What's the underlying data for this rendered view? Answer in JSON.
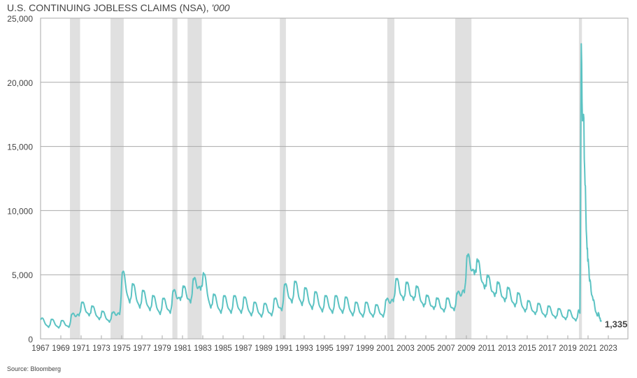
{
  "chart_data": {
    "type": "line",
    "title": "U.S. CONTINUING JOBLESS CLAIMS (NSA), ",
    "title_unit": "'000",
    "source": "Source: Bloomberg",
    "ylim": [
      0,
      25000
    ],
    "xlim": [
      1967,
      2025
    ],
    "yticks": [
      "0",
      "5,000",
      "10,000",
      "15,000",
      "20,000",
      "25,000"
    ],
    "ytick_values": [
      0,
      5000,
      10000,
      15000,
      20000,
      25000
    ],
    "xticks": [
      "1967",
      "1969",
      "1971",
      "1973",
      "1975",
      "1977",
      "1979",
      "1981",
      "1983",
      "1985",
      "1987",
      "1989",
      "1991",
      "1993",
      "1995",
      "1997",
      "1999",
      "2001",
      "2003",
      "2005",
      "2007",
      "2009",
      "2011",
      "2013",
      "2015",
      "2017",
      "2019",
      "2021",
      "2023"
    ],
    "grid": true,
    "line_color": "#5cc3c3",
    "recession_color": "#e0e0e0",
    "recessions": [
      [
        1969.9,
        1970.9
      ],
      [
        1973.9,
        1975.2
      ],
      [
        1980.0,
        1980.5
      ],
      [
        1981.5,
        1982.9
      ],
      [
        1990.6,
        1991.2
      ],
      [
        2001.2,
        2001.9
      ],
      [
        2007.9,
        2009.5
      ],
      [
        2020.1,
        2020.4
      ]
    ],
    "last_value_label": "1,335",
    "series": [
      {
        "name": "Continuing jobless claims (NSA)",
        "points": [
          [
            1967.0,
            1500
          ],
          [
            1967.1,
            1600
          ],
          [
            1967.8,
            900
          ],
          [
            1968.1,
            1500
          ],
          [
            1968.8,
            850
          ],
          [
            1969.1,
            1400
          ],
          [
            1969.8,
            900
          ],
          [
            1970.1,
            1900
          ],
          [
            1970.8,
            1800
          ],
          [
            1971.1,
            2800
          ],
          [
            1971.8,
            1800
          ],
          [
            1972.1,
            2500
          ],
          [
            1972.8,
            1500
          ],
          [
            1973.1,
            2100
          ],
          [
            1973.8,
            1300
          ],
          [
            1974.1,
            2000
          ],
          [
            1974.8,
            1900
          ],
          [
            1975.1,
            5200
          ],
          [
            1975.8,
            2800
          ],
          [
            1976.1,
            4200
          ],
          [
            1976.8,
            2400
          ],
          [
            1977.1,
            3700
          ],
          [
            1977.8,
            2200
          ],
          [
            1978.1,
            3300
          ],
          [
            1978.8,
            1900
          ],
          [
            1979.1,
            3100
          ],
          [
            1979.8,
            2000
          ],
          [
            1980.1,
            3700
          ],
          [
            1980.8,
            3000
          ],
          [
            1981.1,
            4000
          ],
          [
            1981.8,
            2800
          ],
          [
            1982.1,
            4600
          ],
          [
            1982.8,
            3800
          ],
          [
            1983.1,
            5000
          ],
          [
            1983.8,
            2400
          ],
          [
            1984.1,
            3400
          ],
          [
            1984.8,
            2000
          ],
          [
            1985.1,
            3300
          ],
          [
            1985.8,
            2000
          ],
          [
            1986.1,
            3300
          ],
          [
            1986.8,
            2000
          ],
          [
            1987.1,
            3200
          ],
          [
            1987.8,
            1800
          ],
          [
            1988.1,
            2800
          ],
          [
            1988.8,
            1700
          ],
          [
            1989.1,
            2700
          ],
          [
            1989.8,
            1800
          ],
          [
            1990.1,
            3100
          ],
          [
            1990.8,
            2200
          ],
          [
            1991.1,
            4200
          ],
          [
            1991.8,
            2800
          ],
          [
            1992.1,
            4400
          ],
          [
            1992.8,
            2600
          ],
          [
            1993.1,
            3900
          ],
          [
            1993.8,
            2300
          ],
          [
            1994.1,
            3600
          ],
          [
            1994.8,
            2100
          ],
          [
            1995.1,
            3300
          ],
          [
            1995.8,
            2000
          ],
          [
            1996.1,
            3300
          ],
          [
            1996.8,
            2000
          ],
          [
            1997.1,
            3200
          ],
          [
            1997.8,
            1800
          ],
          [
            1998.1,
            2800
          ],
          [
            1998.8,
            1700
          ],
          [
            1999.1,
            2800
          ],
          [
            1999.8,
            1700
          ],
          [
            2000.1,
            2600
          ],
          [
            2000.8,
            1700
          ],
          [
            2001.1,
            3000
          ],
          [
            2001.8,
            2900
          ],
          [
            2002.1,
            4600
          ],
          [
            2002.8,
            3000
          ],
          [
            2003.1,
            4300
          ],
          [
            2003.8,
            3000
          ],
          [
            2004.1,
            4000
          ],
          [
            2004.8,
            2500
          ],
          [
            2005.1,
            3300
          ],
          [
            2005.8,
            2300
          ],
          [
            2006.1,
            3100
          ],
          [
            2006.8,
            2100
          ],
          [
            2007.1,
            3100
          ],
          [
            2007.8,
            2200
          ],
          [
            2008.1,
            3500
          ],
          [
            2008.8,
            3600
          ],
          [
            2009.1,
            6400
          ],
          [
            2009.8,
            5000
          ],
          [
            2010.1,
            6000
          ],
          [
            2010.8,
            3900
          ],
          [
            2011.1,
            4800
          ],
          [
            2011.8,
            3300
          ],
          [
            2012.1,
            4300
          ],
          [
            2012.8,
            2900
          ],
          [
            2013.1,
            3900
          ],
          [
            2013.8,
            2500
          ],
          [
            2014.1,
            3500
          ],
          [
            2014.8,
            2100
          ],
          [
            2015.1,
            2900
          ],
          [
            2015.8,
            1900
          ],
          [
            2016.1,
            2700
          ],
          [
            2016.8,
            1700
          ],
          [
            2017.1,
            2500
          ],
          [
            2017.8,
            1600
          ],
          [
            2018.1,
            2300
          ],
          [
            2018.8,
            1500
          ],
          [
            2019.1,
            2200
          ],
          [
            2019.8,
            1400
          ],
          [
            2020.1,
            2200
          ],
          [
            2020.2,
            2000
          ],
          [
            2020.33,
            23000
          ],
          [
            2020.45,
            17000
          ],
          [
            2020.55,
            17500
          ],
          [
            2020.7,
            12000
          ],
          [
            2020.9,
            7000
          ],
          [
            2021.05,
            5800
          ],
          [
            2021.15,
            4500
          ],
          [
            2021.5,
            3000
          ],
          [
            2021.9,
            1800
          ],
          [
            2022.05,
            2000
          ],
          [
            2022.15,
            1600
          ],
          [
            2022.3,
            1335
          ]
        ]
      }
    ]
  }
}
